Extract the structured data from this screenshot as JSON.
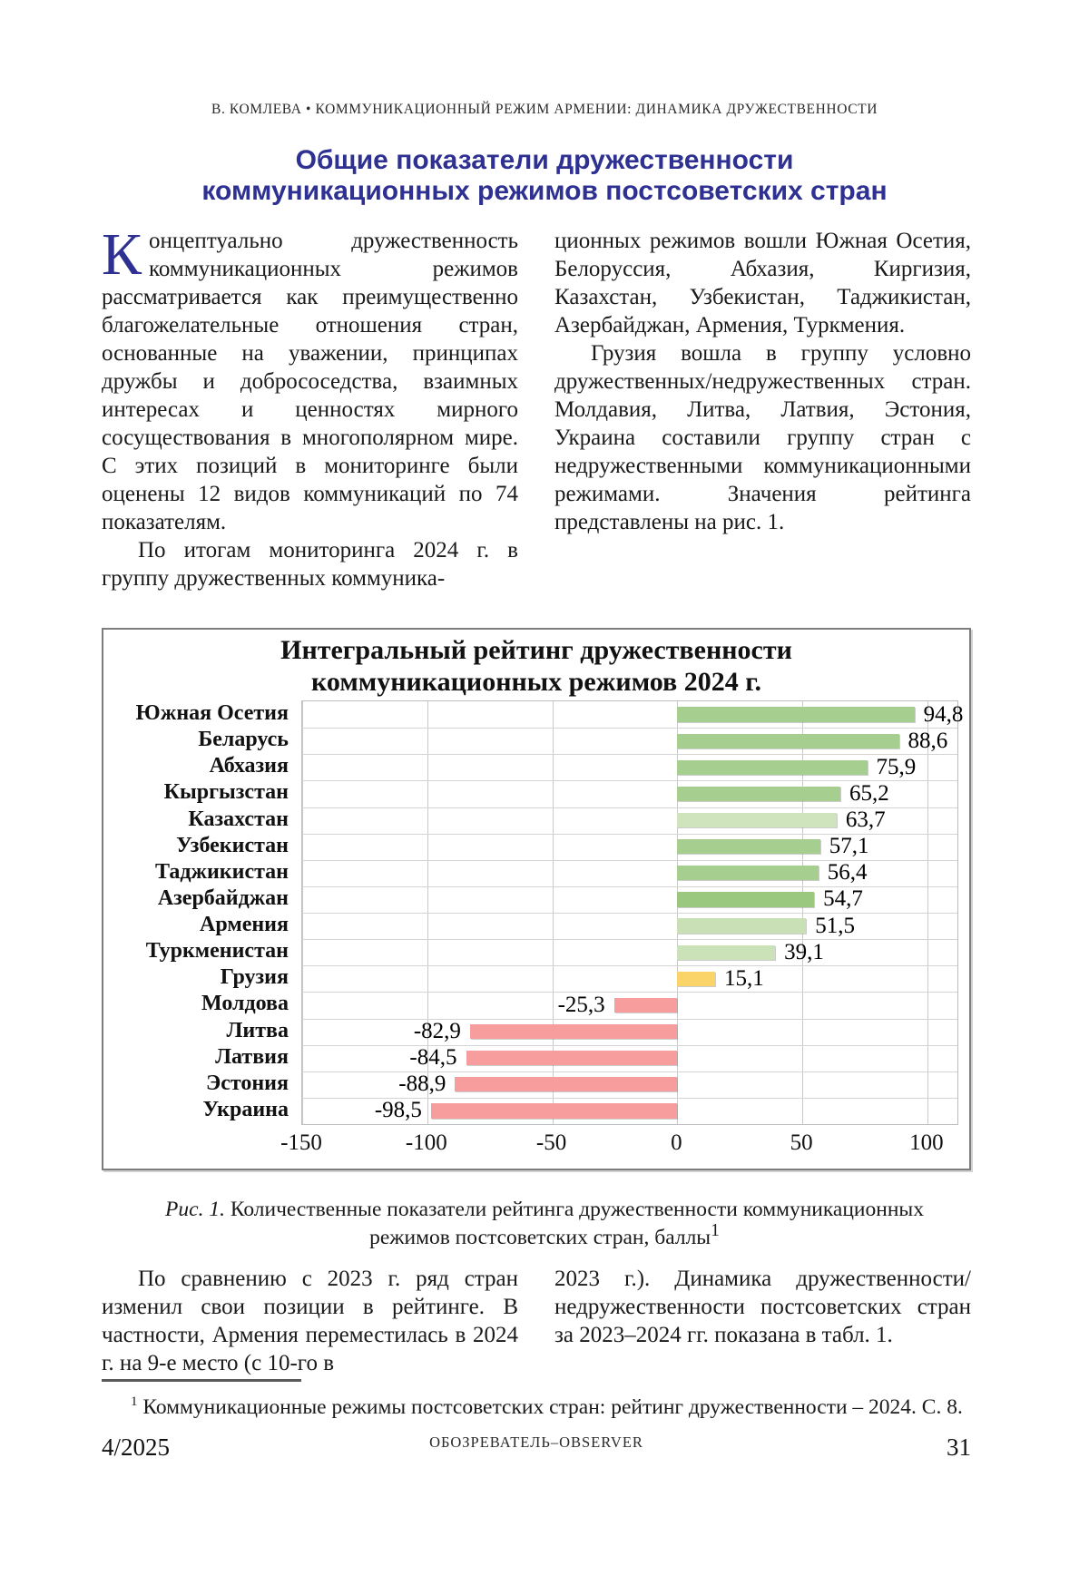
{
  "page": {
    "running_head": "В. КОМЛЕВА • КОММУНИКАЦИОННЫЙ РЕЖИМ АРМЕНИИ: ДИНАМИКА ДРУЖЕСТВЕННОСТИ",
    "title_line1": "Общие показатели дружественности",
    "title_line2": "коммуникационных режимов постсоветских стран",
    "title_color": "#2e3192"
  },
  "article": {
    "dropcap": "К",
    "col1_p1": "онцептуально дружественность коммуникационных режимов рассматривается как преимущественно благожелательные отношения стран, основанные на уважении, принципах дружбы и добрососедства, взаимных интересах и ценностях мирного сосуществования в многополярном мире. С этих позиций в мониторинге были оценены 12 видов коммуникаций по 74 показателям.",
    "col1_p2": "По итогам мониторинга 2024 г. в группу дружественных коммуника-",
    "col2_p1": "ционных режимов вошли Южная Осетия, Белоруссия, Абхазия, Киргизия, Казахстан, Узбекистан, Таджикистан, Азербайджан, Армения, Туркмения.",
    "col2_p2": "Грузия вошла в группу условно дружественных/недружественных стран. Молдавия, Литва, Латвия, Эстония, Украина составили группу стран с недружественными коммуникационными режимами. Значения рейтинга представлены на рис. 1."
  },
  "chart_data": {
    "type": "bar",
    "orientation": "horizontal",
    "title_line1": "Интегральный рейтинг дружественности",
    "title_line2": "коммуникационных  режимов 2024 г.",
    "categories": [
      "Южная Осетия",
      "Беларусь",
      "Абхазия",
      "Кыргызстан",
      "Казахстан",
      "Узбекистан",
      "Таджикистан",
      "Азербайджан",
      "Армения",
      "Туркменистан",
      "Грузия",
      "Молдова",
      "Литва",
      "Латвия",
      "Эстония",
      "Украина"
    ],
    "values": [
      94.8,
      88.6,
      75.9,
      65.2,
      63.7,
      57.1,
      56.4,
      54.7,
      51.5,
      39.1,
      15.1,
      -25.3,
      -82.9,
      -84.5,
      -88.9,
      -98.5
    ],
    "value_labels": [
      "94,8",
      "88,6",
      "75,9",
      "65,2",
      "63,7",
      "57,1",
      "56,4",
      "54,7",
      "51,5",
      "39,1",
      "15,1",
      "-25,3",
      "-82,9",
      "-84,5",
      "-88,9",
      "-98,5"
    ],
    "bar_colors": [
      "#a6ce8e",
      "#a6ce8e",
      "#a6ce8e",
      "#a6ce8e",
      "#cfe3bd",
      "#a6ce8e",
      "#a6ce8e",
      "#9ac87f",
      "#c9e0b6",
      "#cbe2b8",
      "#fad369",
      "#f79d9d",
      "#f79d9d",
      "#f79d9d",
      "#f79d9d",
      "#f79d9d"
    ],
    "xlim": [
      -150,
      112
    ],
    "xticks": [
      -150,
      -100,
      -50,
      0,
      50,
      100
    ],
    "xtick_labels": [
      "-150",
      "-100",
      "-50",
      "0",
      "50",
      "100"
    ],
    "grid": true,
    "legend": "none"
  },
  "figure": {
    "caption_label": "Рис. 1.",
    "caption_text": " Количественные показатели рейтинга дружественности коммуникационных режимов постсоветских стран, баллы",
    "caption_footnote_mark": "1"
  },
  "bottom": {
    "col1_p": "По сравнению с 2023 г. ряд стран изменил свои позиции в рейтинге. В частности, Армения переместилась в 2024 г. на 9-е место (с 10-го в",
    "col2_p": "2023 г.). Динамика дружественности/недружественности постсоветских стран за 2023–2024 гг. показана в табл. 1."
  },
  "footnote": {
    "mark": "1",
    "text": " Коммуникационные режимы постсоветских стран: рейтинг дружественности – 2024. С. 8."
  },
  "footer": {
    "issue": "4/2025",
    "journal": "ОБОЗРЕВАТЕЛЬ–OBSERVER",
    "page_number": "31"
  }
}
